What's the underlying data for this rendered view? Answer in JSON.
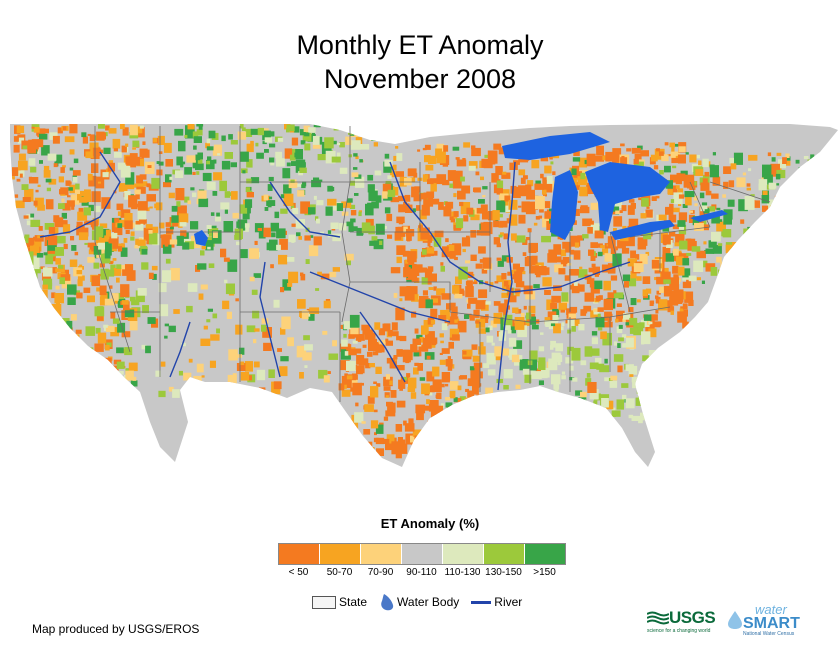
{
  "title": {
    "line1": "Monthly ET Anomaly",
    "line2": "November 2008"
  },
  "legend": {
    "title": "ET Anomaly (%)",
    "classes": [
      {
        "label": "< 50",
        "color": "#f47a20"
      },
      {
        "label": "50-70",
        "color": "#f7a421"
      },
      {
        "label": "70-90",
        "color": "#fdd27a"
      },
      {
        "label": "90-110",
        "color": "#c8c8c8"
      },
      {
        "label": "110-130",
        "color": "#dde9bd"
      },
      {
        "label": "130-150",
        "color": "#9cc93b"
      },
      {
        "label": ">150",
        "color": "#38a548"
      }
    ]
  },
  "symbols": {
    "state": "State",
    "water_body": "Water Body",
    "river": "River"
  },
  "colors": {
    "water": "#1e63e0",
    "river": "#2244aa",
    "state_border": "#6b6b6b"
  },
  "credit": "Map produced by USGS/EROS",
  "logos": {
    "usgs": "USGS",
    "usgs_tagline": "science for a changing world",
    "watersmart_top": "water",
    "watersmart_main": "SMART",
    "watersmart_sub": "National Water Census"
  }
}
